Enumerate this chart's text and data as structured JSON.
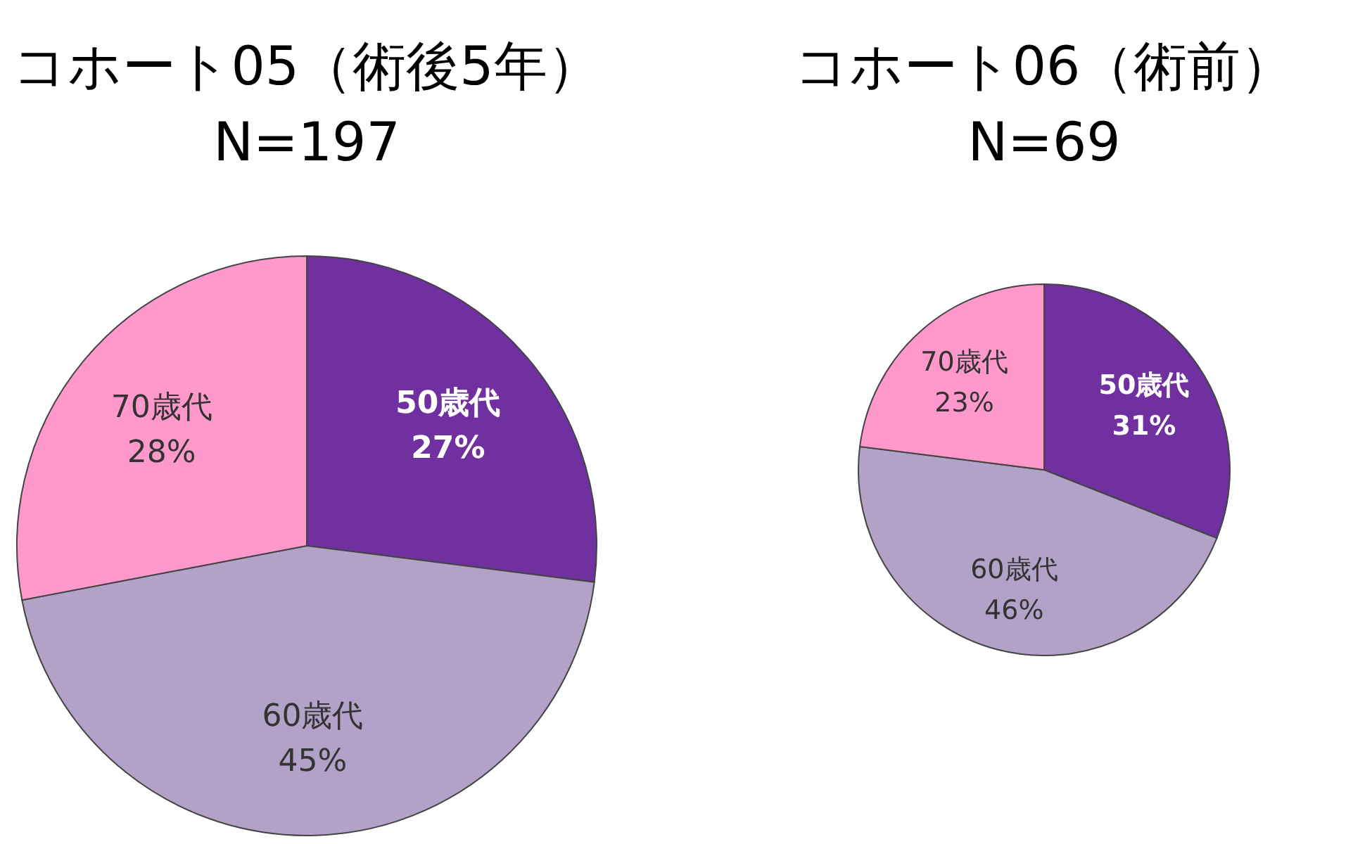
{
  "chart_data": [
    {
      "type": "pie",
      "title": "コホート05（術後5年）",
      "subtitle": "N=197",
      "categories": [
        "50歳代",
        "60歳代",
        "70歳代"
      ],
      "values": [
        27,
        45,
        28
      ],
      "value_labels": [
        "27%",
        "45%",
        "28%"
      ],
      "colors": [
        "#7030a0",
        "#b3a2c7",
        "#ff99cc"
      ]
    },
    {
      "type": "pie",
      "title": "コホート06（術前）",
      "subtitle": "N=69",
      "categories": [
        "50歳代",
        "60歳代",
        "70歳代"
      ],
      "values": [
        31,
        46,
        23
      ],
      "value_labels": [
        "31%",
        "46%",
        "23%"
      ],
      "colors": [
        "#7030a0",
        "#b3a2c7",
        "#ff99cc"
      ]
    }
  ]
}
